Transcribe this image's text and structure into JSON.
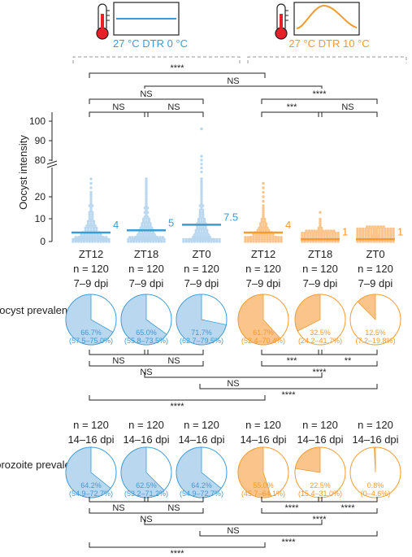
{
  "legend": {
    "conditions": [
      {
        "label": "27 °C DTR 0 °C",
        "color": "#3d9bd3"
      },
      {
        "label": "27 °C DTR 10 °C",
        "color": "#f59a2f"
      }
    ]
  },
  "colors": {
    "blue": "#3d9bd3",
    "blue_light": "#b9d7ef",
    "orange": "#f59a2f",
    "orange_light": "#fbc48a",
    "thermometer": "#e8202a"
  },
  "chart_data": [
    {
      "type": "scatter",
      "ylabel": "Oocyst intensity",
      "y_ticks_lower": [
        "0",
        "10",
        "20"
      ],
      "y_ticks_upper": [
        "80",
        "90",
        "100"
      ],
      "ylim_lower": [
        0,
        28
      ],
      "ylim_upper": [
        72,
        100
      ],
      "groups": [
        {
          "name": "ZT12",
          "condition": 0,
          "n_label": "n = 120",
          "dpi": "7–9 dpi",
          "median": 4,
          "median_label": "4",
          "points": [
            0,
            0,
            0,
            0,
            0,
            0,
            0,
            0,
            0,
            0,
            0,
            0,
            0,
            0,
            0,
            0,
            0,
            0,
            0,
            0,
            0,
            0,
            0,
            0,
            0,
            0,
            0,
            0,
            0,
            0,
            0,
            0,
            0,
            0,
            0,
            0,
            0,
            0,
            0,
            0,
            1,
            1,
            1,
            1,
            1,
            1,
            1,
            1,
            1,
            1,
            1,
            1,
            1,
            2,
            2,
            2,
            2,
            2,
            2,
            2,
            2,
            2,
            3,
            3,
            3,
            3,
            3,
            3,
            3,
            3,
            4,
            4,
            4,
            4,
            4,
            4,
            4,
            5,
            5,
            5,
            5,
            5,
            6,
            6,
            6,
            6,
            6,
            7,
            7,
            7,
            7,
            8,
            8,
            8,
            9,
            9,
            9,
            10,
            10,
            11,
            11,
            12,
            12,
            13,
            13,
            14,
            15,
            16,
            16,
            17,
            18,
            19,
            20,
            21,
            22,
            24,
            26,
            28
          ]
        },
        {
          "name": "ZT18",
          "condition": 0,
          "n_label": "n = 120",
          "dpi": "7–9 dpi",
          "median": 5,
          "median_label": "5",
          "points": [
            0,
            0,
            0,
            0,
            0,
            0,
            0,
            0,
            0,
            0,
            0,
            0,
            0,
            0,
            0,
            0,
            0,
            0,
            0,
            0,
            0,
            0,
            0,
            0,
            0,
            0,
            0,
            0,
            0,
            0,
            0,
            0,
            0,
            0,
            0,
            0,
            0,
            0,
            0,
            0,
            0,
            1,
            1,
            1,
            1,
            1,
            1,
            1,
            1,
            1,
            1,
            1,
            2,
            2,
            2,
            2,
            2,
            2,
            2,
            2,
            3,
            3,
            3,
            3,
            3,
            3,
            3,
            4,
            4,
            4,
            4,
            4,
            4,
            5,
            5,
            5,
            5,
            5,
            5,
            6,
            6,
            6,
            6,
            6,
            7,
            7,
            7,
            7,
            8,
            8,
            8,
            8,
            9,
            9,
            9,
            10,
            10,
            10,
            11,
            11,
            12,
            13,
            13,
            14,
            15,
            15,
            16,
            17,
            18,
            19,
            20,
            21,
            22,
            23,
            24,
            25,
            26,
            27,
            28
          ]
        },
        {
          "name": "ZT0",
          "condition": 0,
          "n_label": "n = 120",
          "dpi": "7–9 dpi",
          "median": 7.5,
          "median_label": "7.5",
          "points": [
            0,
            0,
            0,
            0,
            0,
            0,
            0,
            0,
            0,
            0,
            0,
            0,
            0,
            0,
            0,
            0,
            0,
            0,
            0,
            0,
            0,
            0,
            0,
            0,
            0,
            0,
            0,
            0,
            0,
            0,
            0,
            0,
            0,
            0,
            1,
            1,
            1,
            1,
            1,
            1,
            1,
            1,
            1,
            2,
            2,
            2,
            2,
            2,
            2,
            2,
            3,
            3,
            3,
            3,
            3,
            3,
            4,
            4,
            4,
            4,
            4,
            5,
            5,
            5,
            5,
            5,
            6,
            6,
            6,
            6,
            7,
            7,
            7,
            7,
            8,
            8,
            8,
            8,
            9,
            9,
            9,
            10,
            10,
            10,
            11,
            11,
            12,
            12,
            13,
            13,
            14,
            14,
            15,
            16,
            16,
            17,
            18,
            19,
            20,
            21,
            22,
            23,
            24,
            25,
            26,
            27,
            28,
            74,
            76,
            78,
            80,
            82,
            96
          ]
        },
        {
          "name": "ZT12",
          "condition": 1,
          "n_label": "n = 120",
          "dpi": "7–9 dpi",
          "median": 4,
          "median_label": "4",
          "points": [
            0,
            0,
            0,
            0,
            0,
            0,
            0,
            0,
            0,
            0,
            0,
            0,
            0,
            0,
            0,
            0,
            0,
            0,
            0,
            0,
            0,
            0,
            0,
            0,
            0,
            0,
            0,
            0,
            0,
            0,
            0,
            0,
            0,
            0,
            0,
            0,
            0,
            0,
            0,
            0,
            0,
            0,
            0,
            0,
            0,
            0,
            1,
            1,
            1,
            1,
            1,
            1,
            1,
            1,
            1,
            1,
            1,
            1,
            2,
            2,
            2,
            2,
            2,
            2,
            2,
            2,
            2,
            2,
            3,
            3,
            3,
            3,
            3,
            3,
            3,
            3,
            4,
            4,
            4,
            4,
            4,
            4,
            4,
            5,
            5,
            5,
            5,
            5,
            6,
            6,
            6,
            6,
            7,
            7,
            7,
            8,
            8,
            8,
            9,
            9,
            10,
            10,
            11,
            12,
            13,
            14,
            15,
            16,
            18,
            20,
            22,
            24,
            26
          ]
        },
        {
          "name": "ZT18",
          "condition": 1,
          "n_label": "n = 120",
          "dpi": "7–9 dpi",
          "median": 1,
          "median_label": "1",
          "points": [
            0,
            0,
            0,
            0,
            0,
            0,
            0,
            0,
            0,
            0,
            0,
            0,
            0,
            0,
            0,
            0,
            0,
            0,
            0,
            0,
            0,
            0,
            0,
            0,
            0,
            0,
            0,
            0,
            0,
            0,
            0,
            0,
            0,
            0,
            0,
            0,
            0,
            0,
            0,
            0,
            0,
            0,
            0,
            0,
            0,
            0,
            0,
            0,
            0,
            0,
            0,
            0,
            0,
            0,
            0,
            0,
            0,
            0,
            0,
            0,
            0,
            0,
            0,
            0,
            0,
            0,
            0,
            0,
            0,
            0,
            0,
            0,
            0,
            0,
            0,
            0,
            0,
            0,
            0,
            0,
            0,
            1,
            1,
            1,
            1,
            1,
            1,
            1,
            1,
            1,
            1,
            1,
            1,
            2,
            2,
            2,
            2,
            2,
            2,
            2,
            2,
            3,
            3,
            3,
            3,
            3,
            3,
            4,
            4,
            4,
            4,
            5,
            5,
            6,
            6,
            7,
            8,
            9,
            10,
            13
          ]
        },
        {
          "name": "ZT0",
          "condition": 1,
          "n_label": "n = 120",
          "dpi": "7–9 dpi",
          "median": 1,
          "median_label": "1",
          "points": [
            0,
            0,
            0,
            0,
            0,
            0,
            0,
            0,
            0,
            0,
            0,
            0,
            0,
            0,
            0,
            0,
            0,
            0,
            0,
            0,
            0,
            0,
            0,
            0,
            0,
            0,
            0,
            0,
            0,
            0,
            0,
            0,
            0,
            0,
            0,
            0,
            0,
            0,
            0,
            0,
            0,
            0,
            0,
            0,
            0,
            0,
            0,
            0,
            0,
            0,
            0,
            0,
            0,
            0,
            0,
            0,
            0,
            0,
            0,
            0,
            0,
            0,
            0,
            0,
            0,
            0,
            0,
            0,
            0,
            0,
            0,
            0,
            0,
            0,
            0,
            0,
            0,
            0,
            0,
            0,
            0,
            0,
            0,
            0,
            0,
            0,
            0,
            0,
            0,
            0,
            0,
            0,
            0,
            0,
            0,
            0,
            0,
            0,
            0,
            0,
            0,
            0,
            0,
            0,
            0,
            1,
            1,
            1,
            1,
            1,
            1,
            1,
            1,
            2,
            2,
            2,
            3,
            3,
            4,
            5
          ]
        }
      ],
      "significance": [
        {
          "from": 0,
          "to": 3,
          "label": "****",
          "level": 0
        },
        {
          "from": 1,
          "to": 4,
          "label": "NS",
          "level": 1
        },
        {
          "from": 0,
          "to": 2,
          "label": "NS",
          "level": 2
        },
        {
          "from": 3,
          "to": 5,
          "label": "****",
          "level": 2
        },
        {
          "from": 0,
          "to": 1,
          "label": "NS",
          "level": 3
        },
        {
          "from": 1,
          "to": 2,
          "label": "NS",
          "level": 3
        },
        {
          "from": 3,
          "to": 4,
          "label": "***",
          "level": 3
        },
        {
          "from": 4,
          "to": 5,
          "label": "NS",
          "level": 3
        }
      ]
    },
    {
      "type": "pie",
      "ylabel": "Oocyst prevalence",
      "slices": [
        {
          "percent": 66.7,
          "label": "66.7%",
          "ci": "(57.5–75.0%)",
          "condition": 0
        },
        {
          "percent": 65.0,
          "label": "65.0%",
          "ci": "(55.8–73.5%)",
          "condition": 0
        },
        {
          "percent": 71.7,
          "label": "71.7%",
          "ci": "(62.7–79.5%)",
          "condition": 0
        },
        {
          "percent": 61.7,
          "label": "61.7%",
          "ci": "(52.4–70.4%)",
          "condition": 1
        },
        {
          "percent": 32.5,
          "label": "32.5%",
          "ci": "(24.2–41.7%)",
          "condition": 1
        },
        {
          "percent": 12.5,
          "label": "12.5%",
          "ci": "(7.2–19.8%)",
          "condition": 1
        }
      ],
      "significance": [
        {
          "from": 0,
          "to": 1,
          "label": "NS",
          "level": 0
        },
        {
          "from": 1,
          "to": 2,
          "label": "NS",
          "level": 0
        },
        {
          "from": 3,
          "to": 4,
          "label": "***",
          "level": 0
        },
        {
          "from": 4,
          "to": 5,
          "label": "**",
          "level": 0
        },
        {
          "from": 0,
          "to": 2,
          "label": "NS",
          "level": 1
        },
        {
          "from": 3,
          "to": 5,
          "label": "****",
          "level": 1
        },
        {
          "from": 1,
          "to": 4,
          "label": "NS",
          "level": 2
        },
        {
          "from": 2,
          "to": 5,
          "label": "****",
          "level": 3
        },
        {
          "from": 0,
          "to": 3,
          "label": "****",
          "level": 4
        }
      ]
    },
    {
      "type": "pie",
      "ylabel": "Sporozoite prevalence",
      "groups": [
        {
          "n_label": "n = 120",
          "dpi": "14–16 dpi"
        },
        {
          "n_label": "n = 120",
          "dpi": "14–16 dpi"
        },
        {
          "n_label": "n = 120",
          "dpi": "14–16 dpi"
        },
        {
          "n_label": "n = 120",
          "dpi": "14–16 dpi"
        },
        {
          "n_label": "n = 120",
          "dpi": "14–16 dpi"
        },
        {
          "n_label": "n = 120",
          "dpi": "14–16 dpi"
        }
      ],
      "slices": [
        {
          "percent": 64.2,
          "label": "64.2%",
          "ci": "(54.9–72.7%)",
          "condition": 0
        },
        {
          "percent": 62.5,
          "label": "62.5%",
          "ci": "(53.2–71.2%)",
          "condition": 0
        },
        {
          "percent": 64.2,
          "label": "64.2%",
          "ci": "(54.9–72.7%)",
          "condition": 0
        },
        {
          "percent": 55.0,
          "label": "55.0%",
          "ci": "(45.7–64.1%)",
          "condition": 1
        },
        {
          "percent": 22.5,
          "label": "22.5%",
          "ci": "(15.4–31.0%)",
          "condition": 1
        },
        {
          "percent": 0.8,
          "label": "0.8%",
          "ci": "(0–4.6%)",
          "condition": 1
        }
      ],
      "significance": [
        {
          "from": 0,
          "to": 1,
          "label": "NS",
          "level": 0
        },
        {
          "from": 1,
          "to": 2,
          "label": "NS",
          "level": 0
        },
        {
          "from": 3,
          "to": 4,
          "label": "****",
          "level": 0
        },
        {
          "from": 4,
          "to": 5,
          "label": "****",
          "level": 0
        },
        {
          "from": 0,
          "to": 2,
          "label": "NS",
          "level": 1
        },
        {
          "from": 3,
          "to": 5,
          "label": "****",
          "level": 1
        },
        {
          "from": 1,
          "to": 4,
          "label": "NS",
          "level": 2
        },
        {
          "from": 2,
          "to": 5,
          "label": "****",
          "level": 3
        },
        {
          "from": 0,
          "to": 3,
          "label": "****",
          "level": 4
        }
      ]
    }
  ]
}
